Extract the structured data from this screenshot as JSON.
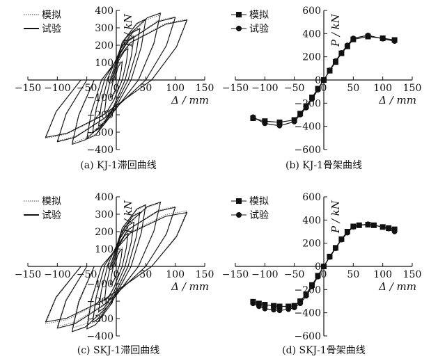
{
  "colors": {
    "simulated": "#666666",
    "test": "#111111",
    "axis": "#111111"
  },
  "chart_data": [
    {
      "type": "line",
      "caption": "(a) KJ-1滞回曲线",
      "xlabel": "Δ / mm",
      "ylabel": "P / kN",
      "xlim": [
        -150,
        150
      ],
      "ylim": [
        -400,
        400
      ],
      "xticks": [
        "−150",
        "−100",
        "−50",
        "0",
        "50",
        "100",
        "150"
      ],
      "yticks": [
        "400",
        "300",
        "200",
        "100",
        "0",
        "−100",
        "−200",
        "−300",
        "−400"
      ],
      "legend": [
        "模拟",
        "试验"
      ],
      "legend_position": "top-left",
      "series": [
        {
          "name": "模拟",
          "style": "dotted",
          "loops": [
            {
              "amp": 10,
              "pmax": 110,
              "pmin": -110
            },
            {
              "amp": 20,
              "pmax": 190,
              "pmin": -190
            },
            {
              "amp": 30,
              "pmax": 260,
              "pmin": -255
            },
            {
              "amp": 40,
              "pmax": 300,
              "pmin": -295
            },
            {
              "amp": 50,
              "pmax": 345,
              "pmin": -335
            },
            {
              "amp": 75,
              "pmax": 375,
              "pmin": -360
            },
            {
              "amp": 100,
              "pmax": 365,
              "pmin": -350
            },
            {
              "amp": 120,
              "pmax": 350,
              "pmin": -335
            }
          ]
        },
        {
          "name": "试验",
          "style": "solid",
          "loops": [
            {
              "amp": 10,
              "pmax": 105,
              "pmin": -100
            },
            {
              "amp": 20,
              "pmax": 180,
              "pmin": -185
            },
            {
              "amp": 30,
              "pmax": 250,
              "pmin": -265
            },
            {
              "amp": 40,
              "pmax": 295,
              "pmin": -300
            },
            {
              "amp": 50,
              "pmax": 350,
              "pmin": -340
            },
            {
              "amp": 75,
              "pmax": 385,
              "pmin": -370
            },
            {
              "amp": 100,
              "pmax": 360,
              "pmin": -355
            },
            {
              "amp": 120,
              "pmax": 345,
              "pmin": -330
            }
          ]
        }
      ]
    },
    {
      "type": "line",
      "caption": "(b) KJ-1骨架曲线",
      "xlabel": "Δ / mm",
      "ylabel": "P / kN",
      "xlim": [
        -150,
        150
      ],
      "ylim": [
        -600,
        600
      ],
      "xticks": [
        "−150",
        "−100",
        "−50",
        "0",
        "50",
        "100",
        "150"
      ],
      "yticks": [
        "600",
        "400",
        "200",
        "0",
        "−200",
        "−400",
        "−600"
      ],
      "legend": [
        "模拟",
        "试验"
      ],
      "legend_position": "top-left",
      "series": [
        {
          "name": "模拟",
          "marker": "square",
          "x": [
            -120,
            -100,
            -75,
            -50,
            -40,
            -30,
            -20,
            -10,
            0,
            10,
            20,
            30,
            40,
            50,
            75,
            100,
            120
          ],
          "y": [
            -330,
            -355,
            -365,
            -345,
            -290,
            -225,
            -150,
            -75,
            0,
            80,
            155,
            230,
            290,
            350,
            375,
            360,
            345
          ]
        },
        {
          "name": "试验",
          "marker": "circle",
          "x": [
            -120,
            -100,
            -75,
            -50,
            -40,
            -30,
            -20,
            -10,
            0,
            10,
            20,
            30,
            40,
            50,
            75,
            100,
            120
          ],
          "y": [
            -320,
            -375,
            -395,
            -360,
            -300,
            -240,
            -165,
            -85,
            0,
            85,
            165,
            235,
            300,
            360,
            385,
            355,
            335
          ]
        }
      ]
    },
    {
      "type": "line",
      "caption": "(c) SKJ-1滞回曲线",
      "xlabel": "Δ / mm",
      "ylabel": "P / kN",
      "xlim": [
        -150,
        150
      ],
      "ylim": [
        -400,
        400
      ],
      "xticks": [
        "−150",
        "−100",
        "−50",
        "0",
        "50",
        "100",
        "150"
      ],
      "yticks": [
        "400",
        "300",
        "200",
        "100",
        "0",
        "−100",
        "−200",
        "−300",
        "−400"
      ],
      "legend": [
        "模拟",
        "试验"
      ],
      "legend_position": "top-left",
      "series": [
        {
          "name": "模拟",
          "style": "dotted",
          "loops": [
            {
              "amp": 10,
              "pmax": 110,
              "pmin": -110
            },
            {
              "amp": 20,
              "pmax": 200,
              "pmin": -200
            },
            {
              "amp": 30,
              "pmax": 265,
              "pmin": -260
            },
            {
              "amp": 40,
              "pmax": 315,
              "pmin": -305
            },
            {
              "amp": 50,
              "pmax": 350,
              "pmin": -340
            },
            {
              "amp": 75,
              "pmax": 365,
              "pmin": -355
            },
            {
              "amp": 100,
              "pmax": 345,
              "pmin": -345
            },
            {
              "amp": 120,
              "pmax": 320,
              "pmin": -330
            }
          ]
        },
        {
          "name": "试验",
          "style": "solid",
          "loops": [
            {
              "amp": 10,
              "pmax": 100,
              "pmin": -105
            },
            {
              "amp": 20,
              "pmax": 190,
              "pmin": -195
            },
            {
              "amp": 30,
              "pmax": 255,
              "pmin": -260
            },
            {
              "amp": 40,
              "pmax": 310,
              "pmin": -320
            },
            {
              "amp": 50,
              "pmax": 355,
              "pmin": -360
            },
            {
              "amp": 75,
              "pmax": 370,
              "pmin": -375
            },
            {
              "amp": 100,
              "pmax": 340,
              "pmin": -355
            },
            {
              "amp": 120,
              "pmax": 310,
              "pmin": -320
            }
          ]
        }
      ]
    },
    {
      "type": "line",
      "caption": "(d) SKJ-1骨架曲线",
      "xlabel": "Δ / mm",
      "ylabel": "P / kN",
      "xlim": [
        -150,
        150
      ],
      "ylim": [
        -600,
        600
      ],
      "xticks": [
        "−150",
        "−100",
        "−50",
        "0",
        "50",
        "100",
        "150"
      ],
      "yticks": [
        "600",
        "400",
        "200",
        "0",
        "−200",
        "−400",
        "−600"
      ],
      "legend": [
        "模拟",
        "试验"
      ],
      "legend_position": "top-left",
      "series": [
        {
          "name": "模拟",
          "marker": "square",
          "x": [
            -120,
            -110,
            -100,
            -85,
            -75,
            -60,
            -50,
            -40,
            -30,
            -20,
            -10,
            0,
            10,
            20,
            30,
            40,
            50,
            60,
            75,
            85,
            100,
            110,
            120
          ],
          "y": [
            -305,
            -320,
            -330,
            -340,
            -345,
            -345,
            -340,
            -300,
            -240,
            -160,
            -80,
            0,
            85,
            160,
            235,
            300,
            345,
            355,
            360,
            355,
            340,
            330,
            320
          ]
        },
        {
          "name": "试验",
          "marker": "circle",
          "x": [
            -120,
            -110,
            -100,
            -85,
            -75,
            -60,
            -50,
            -40,
            -30,
            -20,
            -10,
            0,
            10,
            20,
            30,
            40,
            50,
            60,
            75,
            85,
            100,
            110,
            120
          ],
          "y": [
            -320,
            -345,
            -365,
            -375,
            -380,
            -370,
            -355,
            -320,
            -255,
            -175,
            -90,
            0,
            80,
            155,
            230,
            290,
            340,
            355,
            365,
            355,
            340,
            325,
            300
          ]
        }
      ]
    }
  ]
}
